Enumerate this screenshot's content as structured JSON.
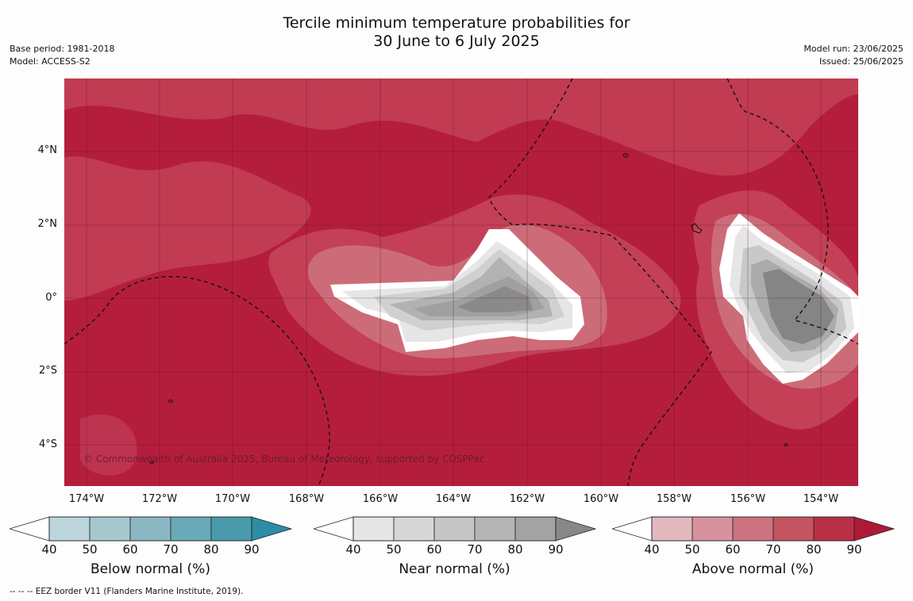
{
  "title_line1": "Tercile minimum temperature probabilities for",
  "title_line2": "30 June to 6 July 2025",
  "meta_left": {
    "base_period": "Base period: 1981-2018",
    "model": "Model: ACCESS-S2"
  },
  "meta_right": {
    "model_run": "Model run: 23/06/2025",
    "issued": "Issued: 25/06/2025"
  },
  "map": {
    "copyright": "© Commonwealth of Australia 2025, Bureau of Meteorology, supported by COSPPac",
    "lat_labels": [
      "4°N",
      "2°N",
      "0°",
      "2°S",
      "4°S"
    ],
    "lon_labels": [
      "174°W",
      "172°W",
      "170°W",
      "168°W",
      "166°W",
      "164°W",
      "162°W",
      "160°W",
      "158°W",
      "156°W",
      "154°W"
    ]
  },
  "colorbars": [
    {
      "title": "Below normal (%)",
      "ticks": [
        "40",
        "50",
        "60",
        "70",
        "80",
        "90"
      ],
      "colors": [
        "#bdd5dc",
        "#a6c7ce",
        "#8bb7c2",
        "#6aa9b8",
        "#4a9aac",
        "#2b8ea6"
      ]
    },
    {
      "title": "Near normal (%)",
      "ticks": [
        "40",
        "50",
        "60",
        "70",
        "80",
        "90"
      ],
      "colors": [
        "#e6e6e6",
        "#d7d7d7",
        "#c5c5c5",
        "#b5b5b5",
        "#a3a3a3",
        "#888888"
      ]
    },
    {
      "title": "Above normal (%)",
      "ticks": [
        "40",
        "50",
        "60",
        "70",
        "80",
        "90"
      ],
      "colors": [
        "#e3b8bf",
        "#d7929d",
        "#cd737f",
        "#c4545f",
        "#b92f45",
        "#ac1a37"
      ]
    }
  ],
  "footer": "--  --  -- EEZ border V11 (Flanders Marine Institute, 2019)."
}
